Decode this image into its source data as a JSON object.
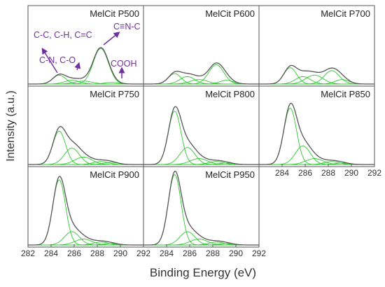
{
  "chart_data": {
    "type": "line",
    "ylabel": "Intensity (a.u.)",
    "xlabel": "Binding Energy (eV)",
    "x_range": [
      282,
      292
    ],
    "x_ticks": [
      "282",
      "284",
      "286",
      "288",
      "290",
      "292"
    ],
    "x_ticks_right_column": [
      "284",
      "286",
      "288",
      "290",
      "292"
    ],
    "colors": {
      "envelope": "#555555",
      "components": "#2dc82d",
      "annotation": "#7030a0"
    },
    "component_centers_eV": [
      284.7,
      285.8,
      286.8,
      288.3,
      289.2
    ],
    "panels": [
      {
        "title": "MelCit P500",
        "components": [
          0.12,
          0.05,
          0.04,
          0.48,
          0.02
        ]
      },
      {
        "title": "MelCit P600",
        "components": [
          0.14,
          0.1,
          0.06,
          0.26,
          0.05
        ]
      },
      {
        "title": "MelCit P700",
        "components": [
          0.22,
          0.1,
          0.12,
          0.18,
          0.06
        ]
      },
      {
        "title": "MelCit P750",
        "components": [
          0.45,
          0.22,
          0.1,
          0.04,
          0.03
        ]
      },
      {
        "title": "MelCit P800",
        "components": [
          0.72,
          0.23,
          0.08,
          0.04,
          0.02
        ]
      },
      {
        "title": "MelCit P850",
        "components": [
          0.76,
          0.25,
          0.08,
          0.04,
          0.02
        ]
      },
      {
        "title": "MelCit P900",
        "components": [
          0.88,
          0.18,
          0.08,
          0.04,
          0.02
        ]
      },
      {
        "title": "MelCit P950",
        "components": [
          0.95,
          0.18,
          0.08,
          0.04,
          0.02
        ]
      }
    ],
    "annotations": [
      "C-C, C-H, C=C",
      "C≡N-C",
      "C-N, C-O",
      "COOH"
    ]
  }
}
